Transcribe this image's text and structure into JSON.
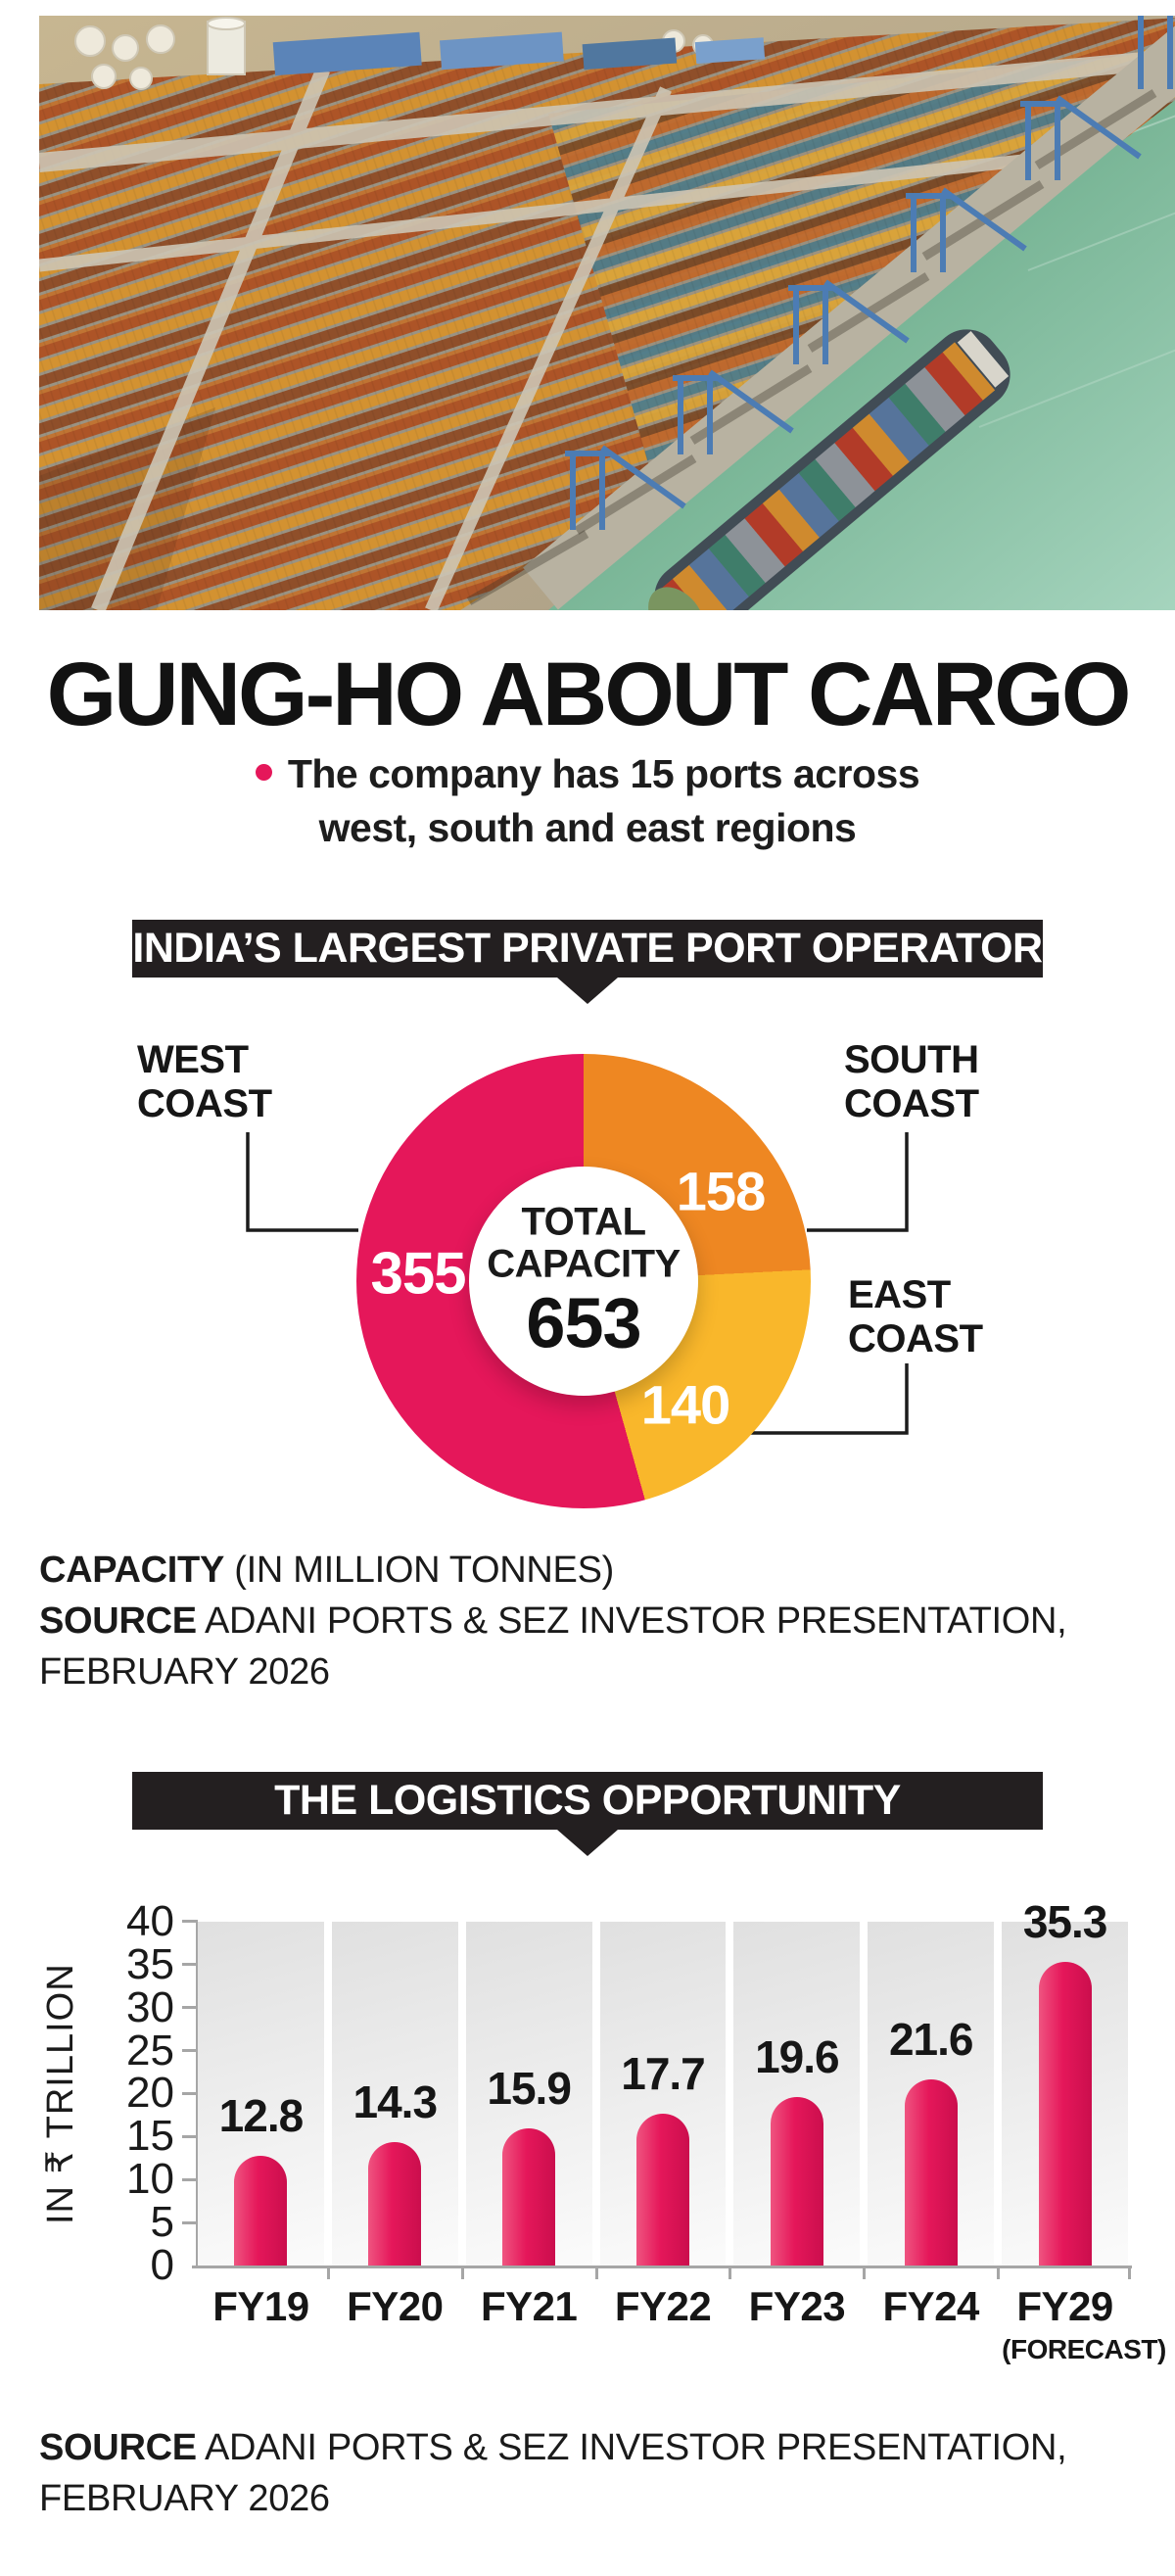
{
  "headline": {
    "title": "GUNG-HO ABOUT CARGO",
    "bullet_lines": [
      "The company has 15 ports across",
      "west, south and east regions"
    ]
  },
  "notes": {
    "ports": {
      "note_bold": "CAPACITY",
      "note_rest": " (IN MILLION TONNES)",
      "source_bold": "SOURCE",
      "source_rest": " ADANI PORTS & SEZ INVESTOR PRESENTATION,",
      "source_line2": "FEBRUARY 2026"
    },
    "logistics": {
      "source_bold": "SOURCE",
      "source_rest": " ADANI PORTS & SEZ INVESTOR PRESENTATION,",
      "source_line2": "FEBRUARY 2026"
    }
  },
  "colors": {
    "accent_pink": "#e5175a",
    "orange": "#ee8722",
    "yellow": "#f9b72b",
    "banner_bg": "#231f20"
  },
  "chart_data": [
    {
      "type": "pie",
      "variant": "donut",
      "title": "INDIA’S LARGEST PRIVATE PORT OPERATOR",
      "unit_note": "CAPACITY (IN MILLION TONNES)",
      "center": {
        "label_line1": "TOTAL",
        "label_line2": "CAPACITY",
        "value": "653"
      },
      "start_angle": "top",
      "direction": "clockwise",
      "segments": [
        {
          "label": "SOUTH COAST",
          "value": 158,
          "color": "#ee8722"
        },
        {
          "label": "EAST COAST",
          "value": 140,
          "color": "#f9b72b"
        },
        {
          "label": "WEST COAST",
          "value": 355,
          "color": "#e5175a"
        }
      ]
    },
    {
      "type": "bar",
      "title": "THE LOGISTICS OPPORTUNITY",
      "ylabel": "IN ₹ TRILLION",
      "ylim": [
        0,
        40
      ],
      "yticks": [
        0,
        5,
        10,
        15,
        20,
        25,
        30,
        35,
        40
      ],
      "categories": [
        "FY19",
        "FY20",
        "FY21",
        "FY22",
        "FY23",
        "FY24",
        "FY29"
      ],
      "category_sublabels": [
        "",
        "",
        "",
        "",
        "",
        "",
        "(FORECAST)"
      ],
      "values": [
        12.8,
        14.3,
        15.9,
        17.7,
        19.6,
        21.6,
        35.3
      ],
      "bar_color": "#e5175a",
      "grid": false,
      "legend": false
    }
  ]
}
